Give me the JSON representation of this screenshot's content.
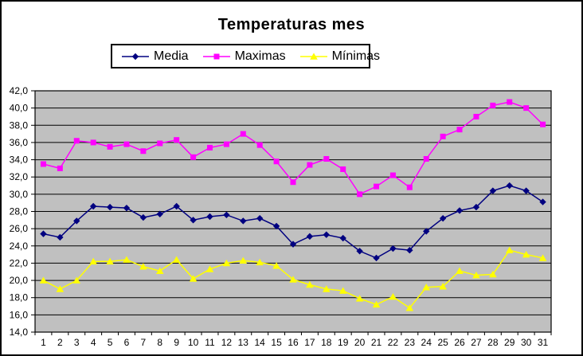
{
  "window": {
    "background": "#FFFFFF",
    "border_color": "#000000"
  },
  "chart_data": {
    "type": "line",
    "title": "Temperaturas mes",
    "categories": [
      "1",
      "2",
      "3",
      "4",
      "5",
      "6",
      "7",
      "8",
      "9",
      "10",
      "11",
      "12",
      "13",
      "14",
      "15",
      "16",
      "17",
      "18",
      "19",
      "20",
      "21",
      "22",
      "23",
      "24",
      "25",
      "26",
      "27",
      "28",
      "29",
      "30",
      "31"
    ],
    "series": [
      {
        "name": "Media",
        "color": "#000080",
        "marker": "diamond",
        "values": [
          25.4,
          25.0,
          26.9,
          28.6,
          28.5,
          28.4,
          27.3,
          27.7,
          28.6,
          27.0,
          27.4,
          27.6,
          26.9,
          27.2,
          26.3,
          24.2,
          25.1,
          25.3,
          24.9,
          23.4,
          22.6,
          23.7,
          23.5,
          25.7,
          27.2,
          28.1,
          28.5,
          30.4,
          31.0,
          30.4,
          29.1
        ]
      },
      {
        "name": "Maximas",
        "color": "#FF00FF",
        "marker": "square",
        "values": [
          33.5,
          33.0,
          36.2,
          36.0,
          35.5,
          35.8,
          35.0,
          35.9,
          36.3,
          34.3,
          35.4,
          35.8,
          37.0,
          35.7,
          33.8,
          31.4,
          33.4,
          34.1,
          32.9,
          30.0,
          30.9,
          32.2,
          30.8,
          34.1,
          36.7,
          37.5,
          39.0,
          40.3,
          40.7,
          40.0,
          38.1
        ]
      },
      {
        "name": "Mínimas",
        "color": "#FFFF00",
        "marker": "triangle",
        "values": [
          20.0,
          19.0,
          20.0,
          22.2,
          22.2,
          22.4,
          21.6,
          21.1,
          22.4,
          20.2,
          21.3,
          22.0,
          22.3,
          22.1,
          21.7,
          20.1,
          19.5,
          19.0,
          18.8,
          17.9,
          17.2,
          18.1,
          16.8,
          19.2,
          19.3,
          21.1,
          20.6,
          20.7,
          23.5,
          23.0,
          22.6
        ]
      }
    ],
    "ylim": [
      14,
      42
    ],
    "y_step": 2,
    "y_tick_labels": [
      "14,0",
      "16,0",
      "18,0",
      "20,0",
      "22,0",
      "24,0",
      "26,0",
      "28,0",
      "30,0",
      "32,0",
      "34,0",
      "36,0",
      "38,0",
      "40,0",
      "42,0"
    ],
    "plot_bg": "#C0C0C0",
    "grid_color": "#000000",
    "axis_color": "#000000",
    "legend_position": "top",
    "grid": "horizontal"
  }
}
